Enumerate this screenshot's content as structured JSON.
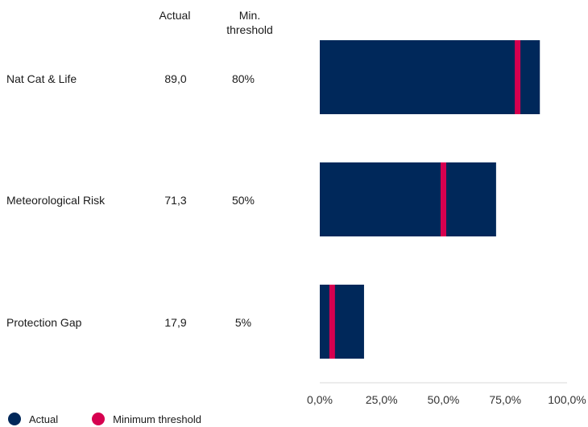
{
  "headers": {
    "actual": "Actual",
    "threshold_line1": "Min.",
    "threshold_line2": "threshold"
  },
  "rows": [
    {
      "label": "Nat Cat & Life",
      "actual_text": "89,0",
      "threshold_text": "80%"
    },
    {
      "label": "Meteorological Risk",
      "actual_text": "71,3",
      "threshold_text": "50%"
    },
    {
      "label": "Protection Gap",
      "actual_text": "17,9",
      "threshold_text": "5%"
    }
  ],
  "legend": [
    {
      "label": "Actual",
      "color": "#00285a"
    },
    {
      "label": "Minimum threshold",
      "color": "#d6004f"
    }
  ],
  "chart_data": {
    "type": "bar",
    "orientation": "horizontal",
    "categories": [
      "Nat Cat & Life",
      "Meteorological Risk",
      "Protection Gap"
    ],
    "series": [
      {
        "name": "Actual",
        "values": [
          89.0,
          71.3,
          17.9
        ],
        "color": "#00285a"
      },
      {
        "name": "Minimum threshold",
        "values": [
          80,
          50,
          5
        ],
        "color": "#d6004f"
      }
    ],
    "xlim": [
      0,
      100
    ],
    "ticks": [
      0,
      25,
      50,
      75,
      100
    ],
    "tick_labels": [
      "0,0%",
      "25,0%",
      "50,0%",
      "75,0%",
      "100,0%"
    ],
    "legend_position": "bottom-left",
    "grid": false
  }
}
